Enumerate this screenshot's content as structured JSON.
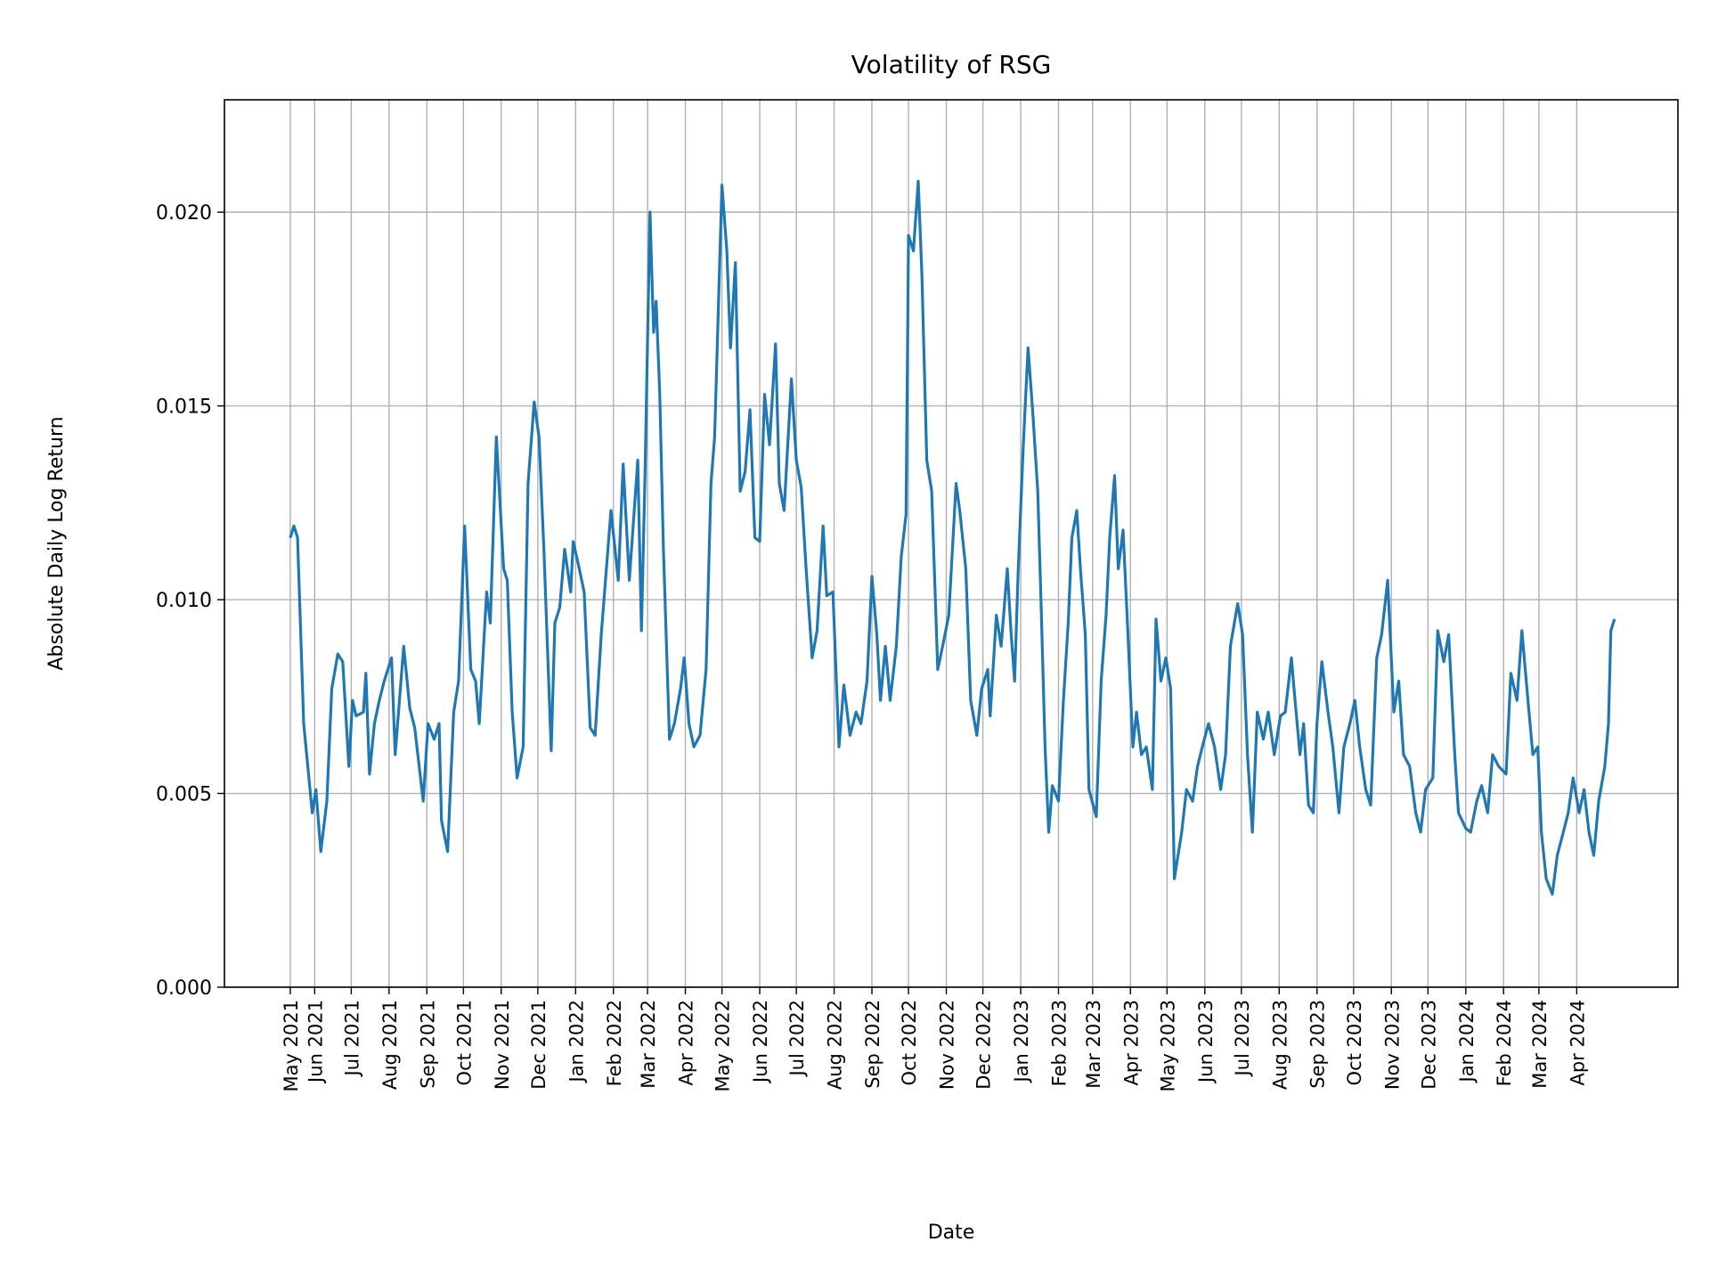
{
  "chart_data": {
    "type": "line",
    "title": "Volatility of RSG",
    "xlabel": "Date",
    "ylabel": "Absolute Daily Log Return",
    "xlim": [
      "2021-03-19",
      "2024-06-23"
    ],
    "ylim": [
      0,
      0.0229
    ],
    "grid": true,
    "line_color": "#1f77b4",
    "grid_color": "#b0b0b0",
    "yticks": [
      {
        "value": 0.0,
        "label": "0.000"
      },
      {
        "value": 0.005,
        "label": "0.005"
      },
      {
        "value": 0.01,
        "label": "0.010"
      },
      {
        "value": 0.015,
        "label": "0.015"
      },
      {
        "value": 0.02,
        "label": "0.020"
      }
    ],
    "xticks": [
      {
        "date": "2021-05-12",
        "label": "May 2021"
      },
      {
        "date": "2021-06-01",
        "label": "Jun 2021"
      },
      {
        "date": "2021-07-01",
        "label": "Jul 2021"
      },
      {
        "date": "2021-08-01",
        "label": "Aug 2021"
      },
      {
        "date": "2021-09-01",
        "label": "Sep 2021"
      },
      {
        "date": "2021-10-01",
        "label": "Oct 2021"
      },
      {
        "date": "2021-11-01",
        "label": "Nov 2021"
      },
      {
        "date": "2021-12-01",
        "label": "Dec 2021"
      },
      {
        "date": "2022-01-01",
        "label": "Jan 2022"
      },
      {
        "date": "2022-02-01",
        "label": "Feb 2022"
      },
      {
        "date": "2022-03-01",
        "label": "Mar 2022"
      },
      {
        "date": "2022-04-01",
        "label": "Apr 2022"
      },
      {
        "date": "2022-05-01",
        "label": "May 2022"
      },
      {
        "date": "2022-06-01",
        "label": "Jun 2022"
      },
      {
        "date": "2022-07-01",
        "label": "Jul 2022"
      },
      {
        "date": "2022-08-01",
        "label": "Aug 2022"
      },
      {
        "date": "2022-09-01",
        "label": "Sep 2022"
      },
      {
        "date": "2022-10-01",
        "label": "Oct 2022"
      },
      {
        "date": "2022-11-01",
        "label": "Nov 2022"
      },
      {
        "date": "2022-12-01",
        "label": "Dec 2022"
      },
      {
        "date": "2023-01-01",
        "label": "Jan 2023"
      },
      {
        "date": "2023-02-01",
        "label": "Feb 2023"
      },
      {
        "date": "2023-03-01",
        "label": "Mar 2023"
      },
      {
        "date": "2023-04-01",
        "label": "Apr 2023"
      },
      {
        "date": "2023-05-01",
        "label": "May 2023"
      },
      {
        "date": "2023-06-01",
        "label": "Jun 2023"
      },
      {
        "date": "2023-07-01",
        "label": "Jul 2023"
      },
      {
        "date": "2023-08-01",
        "label": "Aug 2023"
      },
      {
        "date": "2023-09-01",
        "label": "Sep 2023"
      },
      {
        "date": "2023-10-01",
        "label": "Oct 2023"
      },
      {
        "date": "2023-11-01",
        "label": "Nov 2023"
      },
      {
        "date": "2023-12-01",
        "label": "Dec 2023"
      },
      {
        "date": "2024-01-01",
        "label": "Jan 2024"
      },
      {
        "date": "2024-02-01",
        "label": "Feb 2024"
      },
      {
        "date": "2024-03-01",
        "label": "Mar 2024"
      },
      {
        "date": "2024-04-01",
        "label": "Apr 2024"
      }
    ],
    "points": [
      [
        "2021-05-12",
        0.0116
      ],
      [
        "2021-05-15",
        0.0119
      ],
      [
        "2021-05-18",
        0.0116
      ],
      [
        "2021-05-23",
        0.0068
      ],
      [
        "2021-05-30",
        0.0045
      ],
      [
        "2021-06-02",
        0.0051
      ],
      [
        "2021-06-06",
        0.0035
      ],
      [
        "2021-06-11",
        0.0048
      ],
      [
        "2021-06-15",
        0.0077
      ],
      [
        "2021-06-20",
        0.0086
      ],
      [
        "2021-06-24",
        0.0084
      ],
      [
        "2021-06-29",
        0.0057
      ],
      [
        "2021-07-02",
        0.0074
      ],
      [
        "2021-07-05",
        0.007
      ],
      [
        "2021-07-11",
        0.0071
      ],
      [
        "2021-07-13",
        0.0081
      ],
      [
        "2021-07-16",
        0.0055
      ],
      [
        "2021-07-20",
        0.0068
      ],
      [
        "2021-07-24",
        0.0074
      ],
      [
        "2021-07-28",
        0.0079
      ],
      [
        "2021-08-03",
        0.0085
      ],
      [
        "2021-08-06",
        0.006
      ],
      [
        "2021-08-13",
        0.0088
      ],
      [
        "2021-08-18",
        0.0072
      ],
      [
        "2021-08-22",
        0.0067
      ],
      [
        "2021-08-29",
        0.0048
      ],
      [
        "2021-09-02",
        0.0068
      ],
      [
        "2021-09-07",
        0.0064
      ],
      [
        "2021-09-11",
        0.0068
      ],
      [
        "2021-09-13",
        0.0043
      ],
      [
        "2021-09-18",
        0.0035
      ],
      [
        "2021-09-23",
        0.0071
      ],
      [
        "2021-09-27",
        0.0079
      ],
      [
        "2021-10-02",
        0.0119
      ],
      [
        "2021-10-07",
        0.0082
      ],
      [
        "2021-10-11",
        0.0079
      ],
      [
        "2021-10-14",
        0.0068
      ],
      [
        "2021-10-20",
        0.0102
      ],
      [
        "2021-10-23",
        0.0094
      ],
      [
        "2021-10-28",
        0.0142
      ],
      [
        "2021-11-03",
        0.0108
      ],
      [
        "2021-11-06",
        0.0105
      ],
      [
        "2021-11-10",
        0.0071
      ],
      [
        "2021-11-14",
        0.0054
      ],
      [
        "2021-11-19",
        0.0062
      ],
      [
        "2021-11-23",
        0.013
      ],
      [
        "2021-11-28",
        0.0151
      ],
      [
        "2021-12-02",
        0.0142
      ],
      [
        "2021-12-06",
        0.0113
      ],
      [
        "2021-12-12",
        0.0061
      ],
      [
        "2021-12-15",
        0.0094
      ],
      [
        "2021-12-19",
        0.0098
      ],
      [
        "2021-12-23",
        0.0113
      ],
      [
        "2021-12-28",
        0.0102
      ],
      [
        "2021-12-30",
        0.0115
      ],
      [
        "2022-01-04",
        0.0108
      ],
      [
        "2022-01-08",
        0.0102
      ],
      [
        "2022-01-13",
        0.0067
      ],
      [
        "2022-01-17",
        0.0065
      ],
      [
        "2022-01-22",
        0.0091
      ],
      [
        "2022-01-30",
        0.0123
      ],
      [
        "2022-02-05",
        0.0105
      ],
      [
        "2022-02-09",
        0.0135
      ],
      [
        "2022-02-14",
        0.0105
      ],
      [
        "2022-02-21",
        0.0136
      ],
      [
        "2022-02-24",
        0.0092
      ],
      [
        "2022-02-27",
        0.0133
      ],
      [
        "2022-03-03",
        0.02
      ],
      [
        "2022-03-06",
        0.0169
      ],
      [
        "2022-03-08",
        0.0177
      ],
      [
        "2022-03-11",
        0.0153
      ],
      [
        "2022-03-14",
        0.0113
      ],
      [
        "2022-03-19",
        0.0064
      ],
      [
        "2022-03-23",
        0.0068
      ],
      [
        "2022-03-28",
        0.0077
      ],
      [
        "2022-03-31",
        0.0085
      ],
      [
        "2022-04-04",
        0.0068
      ],
      [
        "2022-04-08",
        0.0062
      ],
      [
        "2022-04-13",
        0.0065
      ],
      [
        "2022-04-18",
        0.0082
      ],
      [
        "2022-04-22",
        0.013
      ],
      [
        "2022-04-25",
        0.0142
      ],
      [
        "2022-05-01",
        0.0207
      ],
      [
        "2022-05-05",
        0.019
      ],
      [
        "2022-05-08",
        0.0165
      ],
      [
        "2022-05-12",
        0.0187
      ],
      [
        "2022-05-16",
        0.0128
      ],
      [
        "2022-05-20",
        0.0133
      ],
      [
        "2022-05-24",
        0.0149
      ],
      [
        "2022-05-28",
        0.0116
      ],
      [
        "2022-06-01",
        0.0115
      ],
      [
        "2022-06-05",
        0.0153
      ],
      [
        "2022-06-09",
        0.014
      ],
      [
        "2022-06-14",
        0.0166
      ],
      [
        "2022-06-17",
        0.013
      ],
      [
        "2022-06-21",
        0.0123
      ],
      [
        "2022-06-24",
        0.014
      ],
      [
        "2022-06-27",
        0.0157
      ],
      [
        "2022-07-01",
        0.0136
      ],
      [
        "2022-07-05",
        0.0129
      ],
      [
        "2022-07-09",
        0.0108
      ],
      [
        "2022-07-14",
        0.0085
      ],
      [
        "2022-07-18",
        0.0092
      ],
      [
        "2022-07-23",
        0.0119
      ],
      [
        "2022-07-26",
        0.0101
      ],
      [
        "2022-07-31",
        0.0102
      ],
      [
        "2022-08-05",
        0.0062
      ],
      [
        "2022-08-09",
        0.0078
      ],
      [
        "2022-08-14",
        0.0065
      ],
      [
        "2022-08-19",
        0.0071
      ],
      [
        "2022-08-23",
        0.0068
      ],
      [
        "2022-08-28",
        0.0079
      ],
      [
        "2022-09-01",
        0.0106
      ],
      [
        "2022-09-05",
        0.0091
      ],
      [
        "2022-09-08",
        0.0074
      ],
      [
        "2022-09-12",
        0.0088
      ],
      [
        "2022-09-16",
        0.0074
      ],
      [
        "2022-09-21",
        0.0088
      ],
      [
        "2022-09-25",
        0.0111
      ],
      [
        "2022-09-29",
        0.0122
      ],
      [
        "2022-10-01",
        0.0194
      ],
      [
        "2022-10-05",
        0.019
      ],
      [
        "2022-10-09",
        0.0208
      ],
      [
        "2022-10-12",
        0.0184
      ],
      [
        "2022-10-16",
        0.0136
      ],
      [
        "2022-10-20",
        0.0128
      ],
      [
        "2022-10-25",
        0.0082
      ],
      [
        "2022-10-29",
        0.0088
      ],
      [
        "2022-11-03",
        0.0096
      ],
      [
        "2022-11-09",
        0.013
      ],
      [
        "2022-11-12",
        0.0123
      ],
      [
        "2022-11-17",
        0.0108
      ],
      [
        "2022-11-21",
        0.0074
      ],
      [
        "2022-11-26",
        0.0065
      ],
      [
        "2022-11-30",
        0.0077
      ],
      [
        "2022-12-05",
        0.0082
      ],
      [
        "2022-12-07",
        0.007
      ],
      [
        "2022-12-12",
        0.0096
      ],
      [
        "2022-12-16",
        0.0088
      ],
      [
        "2022-12-21",
        0.0108
      ],
      [
        "2022-12-24",
        0.0092
      ],
      [
        "2022-12-27",
        0.0079
      ],
      [
        "2022-12-30",
        0.0108
      ],
      [
        "2023-01-03",
        0.0139
      ],
      [
        "2023-01-07",
        0.0165
      ],
      [
        "2023-01-11",
        0.0148
      ],
      [
        "2023-01-15",
        0.0128
      ],
      [
        "2023-01-18",
        0.0096
      ],
      [
        "2023-01-21",
        0.0062
      ],
      [
        "2023-01-24",
        0.004
      ],
      [
        "2023-01-27",
        0.0052
      ],
      [
        "2023-02-01",
        0.0048
      ],
      [
        "2023-02-05",
        0.0074
      ],
      [
        "2023-02-09",
        0.0094
      ],
      [
        "2023-02-12",
        0.0116
      ],
      [
        "2023-02-16",
        0.0123
      ],
      [
        "2023-02-19",
        0.0108
      ],
      [
        "2023-02-23",
        0.0091
      ],
      [
        "2023-02-26",
        0.0051
      ],
      [
        "2023-03-04",
        0.0044
      ],
      [
        "2023-03-08",
        0.0079
      ],
      [
        "2023-03-12",
        0.0096
      ],
      [
        "2023-03-15",
        0.0116
      ],
      [
        "2023-03-19",
        0.0132
      ],
      [
        "2023-03-22",
        0.0108
      ],
      [
        "2023-03-26",
        0.0118
      ],
      [
        "2023-03-30",
        0.0091
      ],
      [
        "2023-04-03",
        0.0062
      ],
      [
        "2023-04-06",
        0.0071
      ],
      [
        "2023-04-10",
        0.006
      ],
      [
        "2023-04-14",
        0.0062
      ],
      [
        "2023-04-19",
        0.0051
      ],
      [
        "2023-04-22",
        0.0095
      ],
      [
        "2023-04-26",
        0.0079
      ],
      [
        "2023-04-30",
        0.0085
      ],
      [
        "2023-05-04",
        0.0077
      ],
      [
        "2023-05-07",
        0.0028
      ],
      [
        "2023-05-13",
        0.004
      ],
      [
        "2023-05-17",
        0.0051
      ],
      [
        "2023-05-22",
        0.0048
      ],
      [
        "2023-05-26",
        0.0057
      ],
      [
        "2023-05-30",
        0.0062
      ],
      [
        "2023-06-04",
        0.0068
      ],
      [
        "2023-06-09",
        0.0062
      ],
      [
        "2023-06-14",
        0.0051
      ],
      [
        "2023-06-18",
        0.006
      ],
      [
        "2023-06-22",
        0.0088
      ],
      [
        "2023-06-28",
        0.0099
      ],
      [
        "2023-07-02",
        0.0091
      ],
      [
        "2023-07-06",
        0.006
      ],
      [
        "2023-07-10",
        0.004
      ],
      [
        "2023-07-14",
        0.0071
      ],
      [
        "2023-07-19",
        0.0064
      ],
      [
        "2023-07-23",
        0.0071
      ],
      [
        "2023-07-28",
        0.006
      ],
      [
        "2023-08-02",
        0.007
      ],
      [
        "2023-08-06",
        0.0071
      ],
      [
        "2023-08-11",
        0.0085
      ],
      [
        "2023-08-14",
        0.0074
      ],
      [
        "2023-08-18",
        0.006
      ],
      [
        "2023-08-21",
        0.0068
      ],
      [
        "2023-08-25",
        0.0047
      ],
      [
        "2023-08-29",
        0.0045
      ],
      [
        "2023-09-01",
        0.0068
      ],
      [
        "2023-09-05",
        0.0084
      ],
      [
        "2023-09-10",
        0.0071
      ],
      [
        "2023-09-14",
        0.0062
      ],
      [
        "2023-09-19",
        0.0045
      ],
      [
        "2023-09-23",
        0.0062
      ],
      [
        "2023-09-28",
        0.0068
      ],
      [
        "2023-10-02",
        0.0074
      ],
      [
        "2023-10-06",
        0.0062
      ],
      [
        "2023-10-11",
        0.0051
      ],
      [
        "2023-10-15",
        0.0047
      ],
      [
        "2023-10-20",
        0.0085
      ],
      [
        "2023-10-24",
        0.0091
      ],
      [
        "2023-10-29",
        0.0105
      ],
      [
        "2023-11-03",
        0.0071
      ],
      [
        "2023-11-07",
        0.0079
      ],
      [
        "2023-11-11",
        0.006
      ],
      [
        "2023-11-16",
        0.0057
      ],
      [
        "2023-11-21",
        0.0045
      ],
      [
        "2023-11-25",
        0.004
      ],
      [
        "2023-11-29",
        0.0051
      ],
      [
        "2023-12-05",
        0.0054
      ],
      [
        "2023-12-09",
        0.0092
      ],
      [
        "2023-12-14",
        0.0084
      ],
      [
        "2023-12-18",
        0.0091
      ],
      [
        "2023-12-23",
        0.006
      ],
      [
        "2023-12-26",
        0.0045
      ],
      [
        "2024-01-01",
        0.0041
      ],
      [
        "2024-01-05",
        0.004
      ],
      [
        "2024-01-10",
        0.0048
      ],
      [
        "2024-01-14",
        0.0052
      ],
      [
        "2024-01-19",
        0.0045
      ],
      [
        "2024-01-23",
        0.006
      ],
      [
        "2024-01-28",
        0.0057
      ],
      [
        "2024-02-03",
        0.0055
      ],
      [
        "2024-02-07",
        0.0081
      ],
      [
        "2024-02-12",
        0.0074
      ],
      [
        "2024-02-16",
        0.0092
      ],
      [
        "2024-02-21",
        0.0074
      ],
      [
        "2024-02-25",
        0.006
      ],
      [
        "2024-02-29",
        0.0062
      ],
      [
        "2024-03-03",
        0.004
      ],
      [
        "2024-03-07",
        0.0028
      ],
      [
        "2024-03-12",
        0.0024
      ],
      [
        "2024-03-16",
        0.0034
      ],
      [
        "2024-03-21",
        0.004
      ],
      [
        "2024-03-25",
        0.0045
      ],
      [
        "2024-03-29",
        0.0054
      ],
      [
        "2024-04-03",
        0.0045
      ],
      [
        "2024-04-07",
        0.0051
      ],
      [
        "2024-04-11",
        0.004
      ],
      [
        "2024-04-15",
        0.0034
      ],
      [
        "2024-04-19",
        0.0048
      ],
      [
        "2024-04-24",
        0.0057
      ],
      [
        "2024-04-27",
        0.0068
      ],
      [
        "2024-04-29",
        0.0092
      ],
      [
        "2024-05-02",
        0.0095
      ]
    ]
  }
}
